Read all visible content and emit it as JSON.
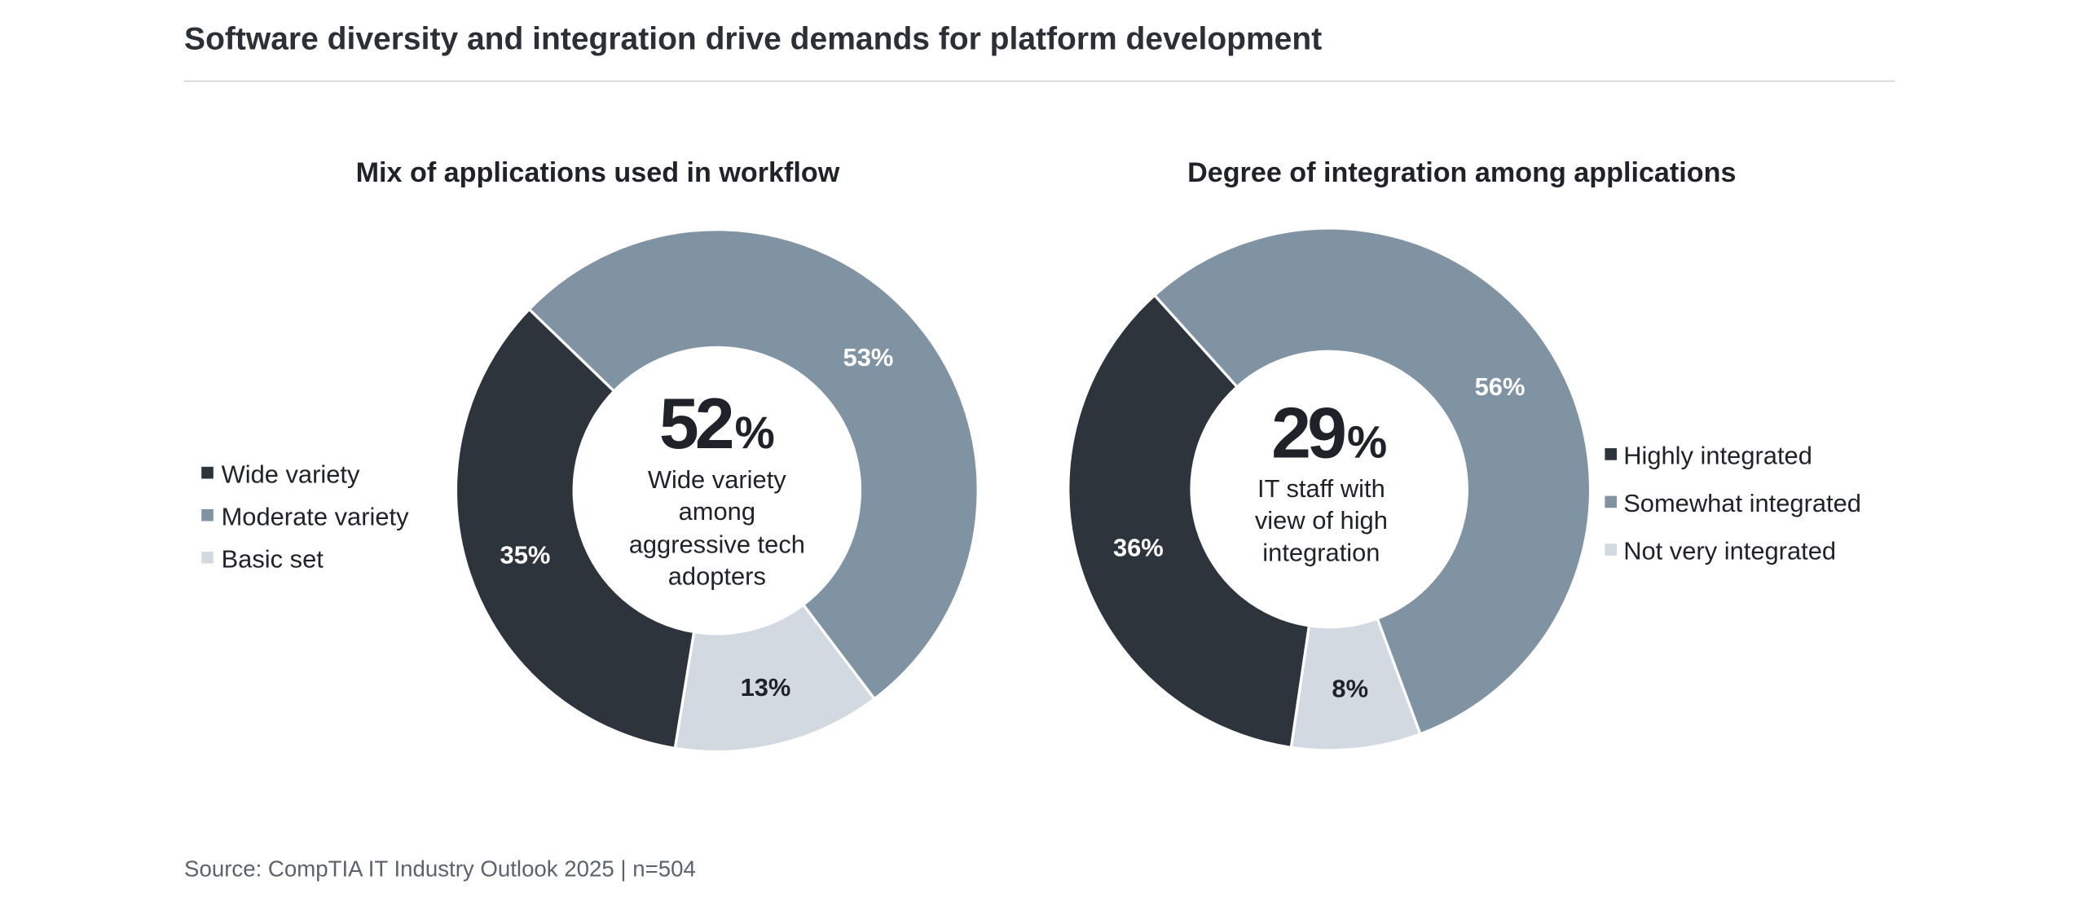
{
  "title": "Software diversity and integration drive demands for platform development",
  "source": "Source: CompTIA IT Industry Outlook 2025 | n=504",
  "colors": {
    "dark": "#2d343c",
    "moderate": "#8093a2",
    "light": "#d3d9e1",
    "text": "#1f2329"
  },
  "chart_data": [
    {
      "type": "pie",
      "subtype": "donut",
      "title": "Mix of applications used in workflow",
      "categories": [
        "Wide variety",
        "Moderate variety",
        "Basic set"
      ],
      "values": [
        35,
        53,
        13
      ],
      "value_labels": [
        "35%",
        "53%",
        "13%"
      ],
      "colors": [
        "#2d343c",
        "#8093a2",
        "#d3d9e1"
      ],
      "legend": "left",
      "center_value": "52",
      "center_unit": "%",
      "center_text": [
        "Wide variety",
        "among",
        "aggressive tech",
        "adopters"
      ]
    },
    {
      "type": "pie",
      "subtype": "donut",
      "title": "Degree of integration among applications",
      "categories": [
        "Highly integrated",
        "Somewhat integrated",
        "Not very integrated"
      ],
      "values": [
        36,
        56,
        8
      ],
      "value_labels": [
        "36%",
        "56%",
        "8%"
      ],
      "colors": [
        "#2d343c",
        "#8093a2",
        "#d3d9e1"
      ],
      "legend": "right",
      "center_value": "29",
      "center_unit": "%",
      "center_text": [
        "IT staff with",
        "view of high",
        "integration"
      ]
    }
  ]
}
